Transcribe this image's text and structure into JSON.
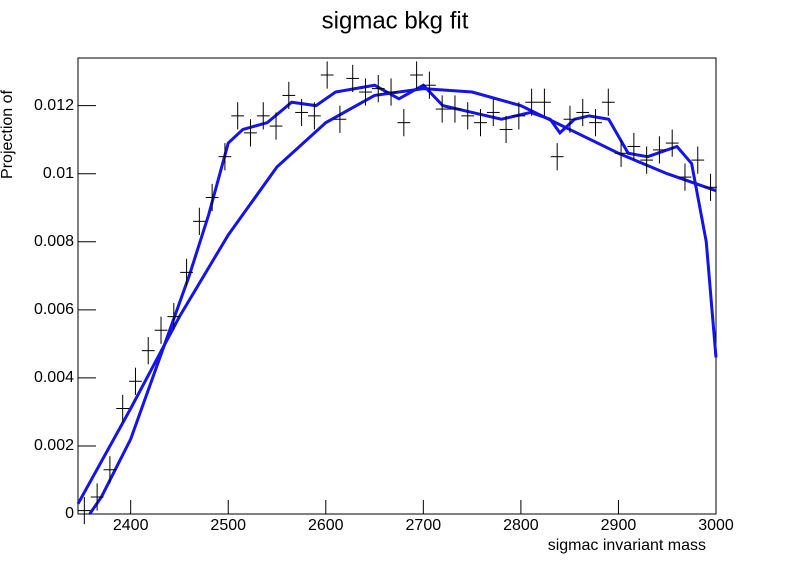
{
  "chart_data": {
    "type": "scatter-fit",
    "title": "sigmac bkg fit",
    "x_label": "sigmac invariant mass",
    "y_label": "Projection of",
    "xlim": [
      2346,
      3000
    ],
    "ylim": [
      0,
      0.0134
    ],
    "xticks": [
      2400,
      2500,
      2600,
      2700,
      2800,
      2900,
      3000
    ],
    "yticks": [
      0,
      0.002,
      0.004,
      0.006,
      0.008,
      0.01,
      0.012
    ],
    "points": {
      "color": "#000000",
      "xerr": 6.54,
      "yerr": 0.0004,
      "x": [
        2352.5,
        2365.6,
        2378.7,
        2391.8,
        2404.9,
        2418.0,
        2431.1,
        2444.2,
        2457.3,
        2470.4,
        2483.5,
        2496.6,
        2509.7,
        2522.8,
        2535.9,
        2549.0,
        2562.1,
        2575.2,
        2588.3,
        2601.4,
        2614.5,
        2627.6,
        2640.7,
        2653.8,
        2666.9,
        2680.0,
        2693.1,
        2706.2,
        2719.3,
        2732.4,
        2745.5,
        2758.6,
        2771.7,
        2784.8,
        2797.9,
        2811.0,
        2824.1,
        2837.2,
        2850.3,
        2863.4,
        2876.5,
        2889.6,
        2902.7,
        2915.8,
        2928.9,
        2942.0,
        2955.1,
        2968.2,
        2981.3,
        2994.4
      ],
      "values": [
        0.0001,
        0.0005,
        0.0013,
        0.0031,
        0.0039,
        0.0048,
        0.0054,
        0.0058,
        0.0071,
        0.0086,
        0.0093,
        0.0105,
        0.0117,
        0.0112,
        0.0117,
        0.0114,
        0.0123,
        0.0118,
        0.0117,
        0.0129,
        0.0116,
        0.0128,
        0.0124,
        0.0125,
        0.0124,
        0.0115,
        0.0129,
        0.0126,
        0.0119,
        0.0119,
        0.0117,
        0.0115,
        0.0118,
        0.0113,
        0.0117,
        0.0121,
        0.0121,
        0.0105,
        0.0116,
        0.0118,
        0.0115,
        0.0121,
        0.0106,
        0.0108,
        0.0104,
        0.0107,
        0.0109,
        0.0099,
        0.0104,
        0.0096
      ]
    },
    "series": [
      {
        "color": "#1414e6",
        "x": [
          2346,
          2400,
          2450,
          2500,
          2550,
          2600,
          2650,
          2700,
          2750,
          2800,
          2850,
          2900,
          2950,
          3000
        ],
        "values": [
          0.0003,
          0.0031,
          0.0058,
          0.0082,
          0.0102,
          0.0115,
          0.0123,
          0.0125,
          0.0124,
          0.012,
          0.0113,
          0.0106,
          0.01,
          0.0095
        ]
      },
      {
        "color": "#1414e6",
        "x": [
          2358,
          2370,
          2400,
          2430,
          2460,
          2480,
          2500,
          2515,
          2540,
          2565,
          2590,
          2610,
          2650,
          2675,
          2700,
          2720,
          2750,
          2780,
          2810,
          2830,
          2840,
          2855,
          2870,
          2890,
          2910,
          2930,
          2960,
          2975,
          2990,
          3000
        ],
        "values": [
          0,
          0.0005,
          0.0022,
          0.0046,
          0.007,
          0.0088,
          0.0109,
          0.0113,
          0.0115,
          0.0121,
          0.012,
          0.0124,
          0.0126,
          0.0122,
          0.0126,
          0.012,
          0.0118,
          0.0116,
          0.0118,
          0.0116,
          0.0112,
          0.0116,
          0.0117,
          0.0116,
          0.0106,
          0.0105,
          0.0108,
          0.0103,
          0.008,
          0.0046
        ]
      }
    ]
  }
}
